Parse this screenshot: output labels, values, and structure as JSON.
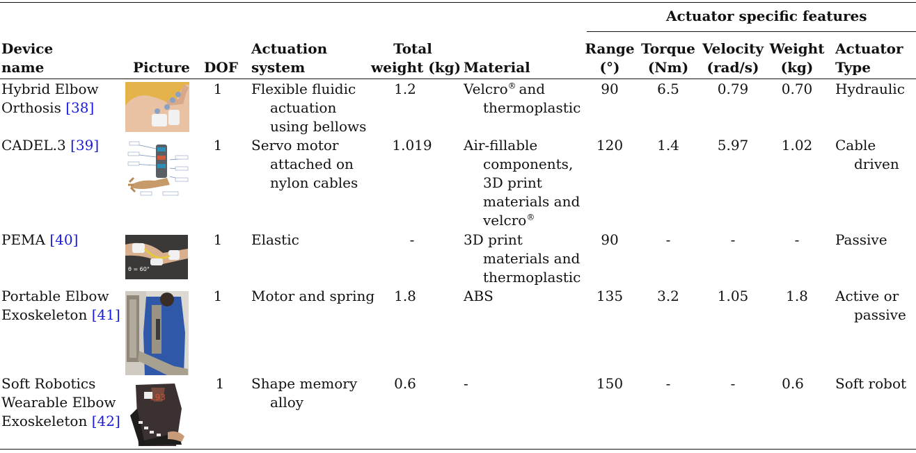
{
  "header": {
    "group": "Actuator specific features",
    "device_name": [
      "Device",
      "name"
    ],
    "picture": "Picture",
    "dof": "DOF",
    "actuation": [
      "Actuation",
      "system"
    ],
    "total_weight": [
      "Total",
      "weight (kg)"
    ],
    "material": "Material",
    "range": [
      "Range",
      "(°)"
    ],
    "torque": [
      "Torque",
      "(Nm)"
    ],
    "velocity": [
      "Velocity",
      "(rad/s)"
    ],
    "weight": [
      "Weight",
      "(kg)"
    ],
    "type": [
      "Actuator",
      "Type"
    ]
  },
  "rows": [
    {
      "name": [
        "Hybrid Elbow",
        "Orthosis "
      ],
      "ref": "[38]",
      "dof": "1",
      "actuation": [
        "Flexible fluidic",
        "actuation",
        "using bellows"
      ],
      "total_weight": "1.2",
      "material": [
        "Velcro",
        "® ",
        "and",
        "thermoplastic"
      ],
      "range": "90",
      "torque": "6.5",
      "velocity": "0.79",
      "weight": "0.70",
      "type": [
        "Hydraulic"
      ]
    },
    {
      "name": [
        "CADEL.3 "
      ],
      "ref": "[39]",
      "dof": "1",
      "actuation": [
        "Servo motor",
        "attached on",
        "nylon cables"
      ],
      "total_weight": "1.019",
      "material": [
        "Air-fillable",
        "components,",
        "3D print",
        "materials and",
        "velcro",
        "®"
      ],
      "range": "120",
      "torque": "1.4",
      "velocity": "5.97",
      "weight": "1.02",
      "type": [
        "Cable",
        "driven"
      ]
    },
    {
      "name": [
        "PEMA "
      ],
      "ref": "[40]",
      "dof": "1",
      "actuation": [
        "Elastic"
      ],
      "total_weight": "-",
      "material": [
        "3D print",
        "materials and",
        "thermoplastic"
      ],
      "range": "90",
      "torque": "-",
      "velocity": "-",
      "weight": "-",
      "type": [
        "Passive"
      ],
      "pic_caption": "θ = 60°"
    },
    {
      "name": [
        "Portable Elbow",
        "Exoskeleton "
      ],
      "ref": "[41]",
      "dof": "1",
      "actuation": [
        "Motor and spring"
      ],
      "total_weight": "1.8",
      "material": [
        "ABS"
      ],
      "range": "135",
      "torque": "3.2",
      "velocity": "1.05",
      "weight": "1.8",
      "type": [
        "Active or",
        "passive"
      ]
    },
    {
      "name": [
        "Soft Robotics",
        "Wearable Elbow",
        "Exoskeleton "
      ],
      "ref": "[42]",
      "dof": "1",
      "actuation": [
        "Shape memory",
        "alloy"
      ],
      "total_weight": "0.6",
      "material": [
        "-"
      ],
      "range": "150",
      "torque": "-",
      "velocity": "-",
      "weight": "0.6",
      "type": [
        "Soft robot"
      ]
    }
  ]
}
